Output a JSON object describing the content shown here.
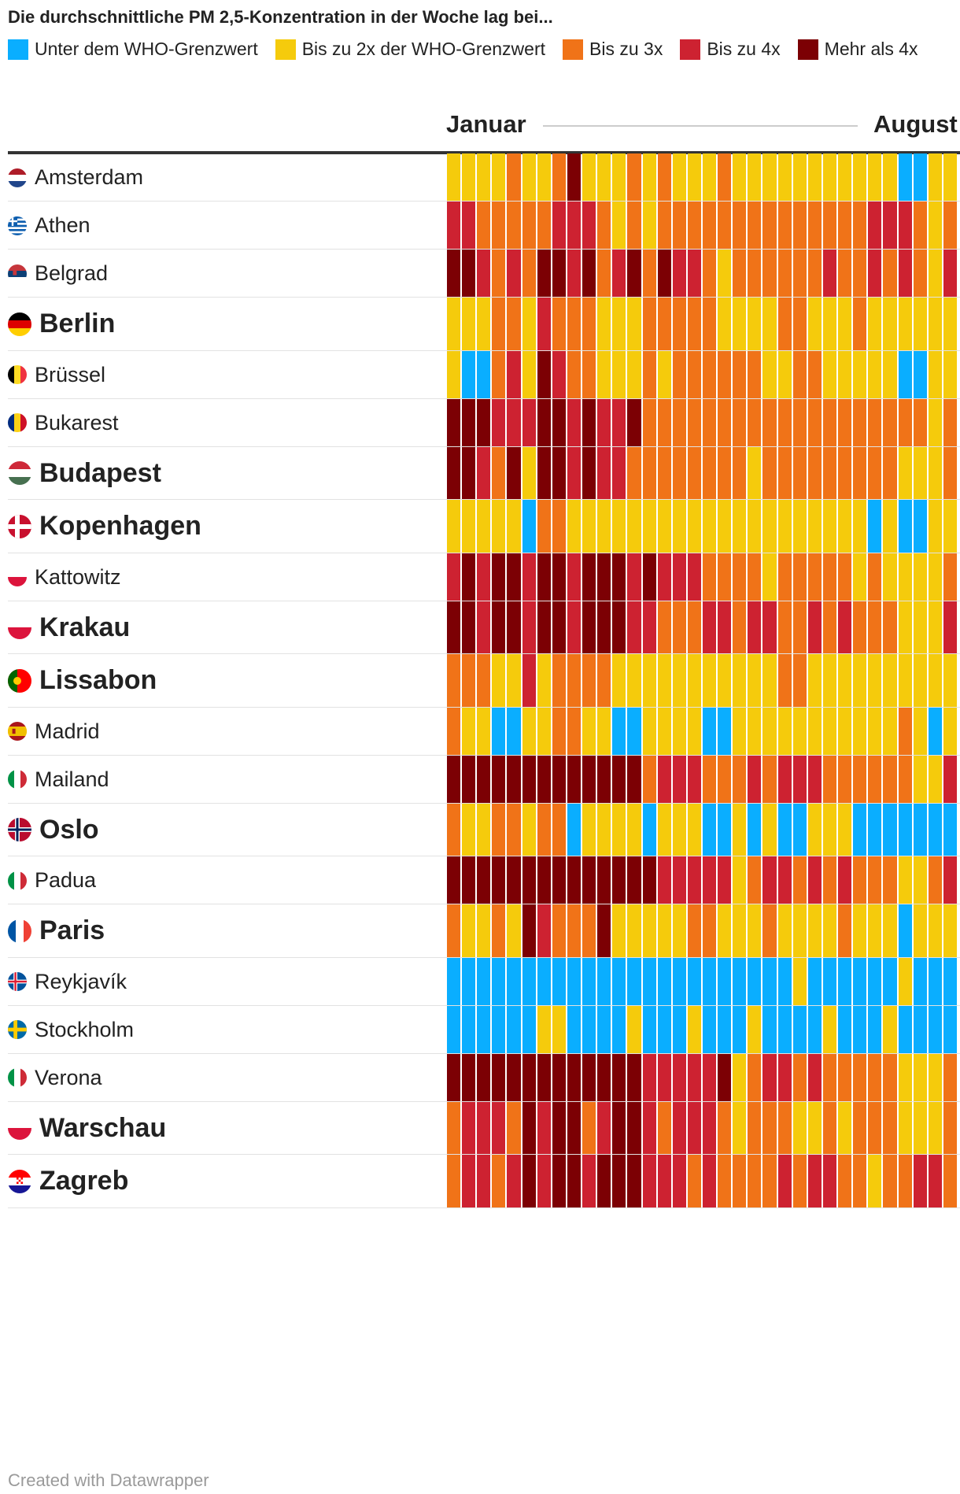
{
  "title": "Die durchschnittliche PM 2,5-Konzentration in der Woche lag bei...",
  "legend": [
    {
      "label": "Unter dem WHO-Grenzwert",
      "color": "#0aaeff"
    },
    {
      "label": "Bis zu 2x der WHO-Grenzwert",
      "color": "#f5cb0c"
    },
    {
      "label": "Bis zu 3x",
      "color": "#f07318"
    },
    {
      "label": "Bis zu 4x",
      "color": "#cd2231"
    },
    {
      "label": "Mehr als 4x",
      "color": "#7c0004"
    }
  ],
  "axis": {
    "start": "Januar",
    "end": "August"
  },
  "credit": "Created with Datawrapper",
  "chart_data": {
    "type": "heatmap",
    "title": "Die durchschnittliche PM 2,5-Konzentration in der Woche lag bei...",
    "x_range": [
      "Januar",
      "August"
    ],
    "columns": 34,
    "levels": {
      "0": "Unter dem WHO-Grenzwert",
      "1": "Bis zu 2x der WHO-Grenzwert",
      "2": "Bis zu 3x",
      "3": "Bis zu 4x",
      "4": "Mehr als 4x"
    },
    "rows": [
      {
        "city": "Amsterdam",
        "highlight": false,
        "flag": "nl",
        "values": [
          1,
          1,
          1,
          1,
          2,
          1,
          1,
          2,
          4,
          1,
          1,
          1,
          2,
          1,
          2,
          1,
          1,
          1,
          2,
          1,
          1,
          1,
          1,
          1,
          1,
          1,
          1,
          1,
          1,
          1,
          0,
          0,
          1,
          1
        ]
      },
      {
        "city": "Athen",
        "highlight": false,
        "flag": "gr",
        "values": [
          3,
          3,
          2,
          2,
          2,
          2,
          2,
          3,
          3,
          3,
          2,
          1,
          2,
          1,
          2,
          2,
          2,
          2,
          2,
          2,
          2,
          2,
          2,
          2,
          2,
          2,
          2,
          2,
          3,
          3,
          3,
          2,
          1,
          2
        ]
      },
      {
        "city": "Belgrad",
        "highlight": false,
        "flag": "rs",
        "values": [
          4,
          4,
          3,
          2,
          3,
          2,
          4,
          4,
          3,
          4,
          2,
          3,
          4,
          2,
          4,
          3,
          3,
          2,
          1,
          2,
          2,
          2,
          2,
          2,
          2,
          3,
          2,
          2,
          3,
          2,
          3,
          2,
          1,
          3
        ]
      },
      {
        "city": "Berlin",
        "highlight": true,
        "flag": "de",
        "values": [
          1,
          1,
          1,
          2,
          2,
          1,
          3,
          2,
          2,
          2,
          1,
          1,
          1,
          2,
          2,
          2,
          2,
          2,
          1,
          1,
          1,
          1,
          2,
          2,
          1,
          1,
          1,
          2,
          1,
          1,
          1,
          1,
          1,
          1
        ]
      },
      {
        "city": "Brüssel",
        "highlight": false,
        "flag": "be",
        "values": [
          1,
          0,
          0,
          2,
          3,
          1,
          4,
          3,
          2,
          2,
          1,
          1,
          1,
          2,
          1,
          2,
          2,
          2,
          2,
          2,
          2,
          1,
          1,
          2,
          2,
          1,
          1,
          1,
          1,
          1,
          0,
          0,
          1,
          1
        ]
      },
      {
        "city": "Bukarest",
        "highlight": false,
        "flag": "ro",
        "values": [
          4,
          4,
          4,
          3,
          3,
          3,
          4,
          4,
          3,
          4,
          3,
          3,
          4,
          2,
          2,
          2,
          2,
          2,
          2,
          2,
          2,
          2,
          2,
          2,
          2,
          2,
          2,
          2,
          2,
          2,
          2,
          2,
          1,
          2
        ]
      },
      {
        "city": "Budapest",
        "highlight": true,
        "flag": "hu",
        "values": [
          4,
          4,
          3,
          2,
          4,
          1,
          4,
          4,
          3,
          4,
          3,
          3,
          2,
          2,
          2,
          2,
          2,
          2,
          2,
          2,
          1,
          2,
          2,
          2,
          2,
          2,
          2,
          2,
          2,
          2,
          1,
          1,
          1,
          2
        ]
      },
      {
        "city": "Kopenhagen",
        "highlight": true,
        "flag": "dk",
        "values": [
          1,
          1,
          1,
          1,
          1,
          0,
          2,
          2,
          1,
          1,
          1,
          1,
          1,
          1,
          1,
          1,
          1,
          1,
          1,
          1,
          1,
          1,
          1,
          1,
          1,
          1,
          1,
          1,
          0,
          1,
          0,
          0,
          1,
          1
        ]
      },
      {
        "city": "Kattowitz",
        "highlight": false,
        "flag": "pl",
        "values": [
          3,
          4,
          3,
          4,
          4,
          3,
          4,
          4,
          3,
          4,
          4,
          4,
          3,
          4,
          3,
          3,
          3,
          2,
          2,
          2,
          2,
          1,
          2,
          2,
          2,
          2,
          2,
          1,
          2,
          1,
          1,
          1,
          1,
          2
        ]
      },
      {
        "city": "Krakau",
        "highlight": true,
        "flag": "pl",
        "values": [
          4,
          4,
          3,
          4,
          4,
          3,
          4,
          4,
          3,
          4,
          4,
          4,
          3,
          3,
          2,
          2,
          2,
          3,
          3,
          2,
          3,
          3,
          2,
          2,
          3,
          2,
          3,
          2,
          2,
          2,
          1,
          1,
          1,
          3
        ]
      },
      {
        "city": "Lissabon",
        "highlight": true,
        "flag": "pt",
        "values": [
          2,
          2,
          2,
          1,
          1,
          3,
          1,
          2,
          2,
          2,
          2,
          1,
          1,
          1,
          1,
          1,
          1,
          1,
          1,
          1,
          1,
          1,
          2,
          2,
          1,
          1,
          1,
          1,
          1,
          1,
          1,
          1,
          1,
          1
        ]
      },
      {
        "city": "Madrid",
        "highlight": false,
        "flag": "es",
        "values": [
          2,
          1,
          1,
          0,
          0,
          1,
          1,
          2,
          2,
          1,
          1,
          0,
          0,
          1,
          1,
          1,
          1,
          0,
          0,
          1,
          1,
          1,
          1,
          1,
          1,
          1,
          1,
          1,
          1,
          1,
          2,
          1,
          0,
          1
        ]
      },
      {
        "city": "Mailand",
        "highlight": false,
        "flag": "it",
        "values": [
          4,
          4,
          4,
          4,
          4,
          4,
          4,
          4,
          4,
          4,
          4,
          4,
          4,
          2,
          3,
          3,
          3,
          2,
          2,
          2,
          3,
          2,
          3,
          3,
          3,
          2,
          2,
          2,
          2,
          2,
          2,
          1,
          1,
          3
        ]
      },
      {
        "city": "Oslo",
        "highlight": true,
        "flag": "no",
        "values": [
          2,
          1,
          1,
          2,
          2,
          1,
          2,
          2,
          0,
          1,
          1,
          1,
          1,
          0,
          1,
          1,
          1,
          0,
          0,
          1,
          0,
          1,
          0,
          0,
          1,
          1,
          1,
          0,
          0,
          0,
          0,
          0,
          0,
          0
        ]
      },
      {
        "city": "Padua",
        "highlight": false,
        "flag": "it",
        "values": [
          4,
          4,
          4,
          4,
          4,
          4,
          4,
          4,
          4,
          4,
          4,
          4,
          4,
          4,
          3,
          3,
          3,
          3,
          3,
          1,
          2,
          3,
          3,
          2,
          3,
          2,
          3,
          2,
          2,
          2,
          1,
          1,
          2,
          3
        ]
      },
      {
        "city": "Paris",
        "highlight": true,
        "flag": "fr",
        "values": [
          2,
          1,
          1,
          2,
          1,
          4,
          3,
          2,
          2,
          2,
          4,
          1,
          1,
          1,
          1,
          1,
          2,
          2,
          1,
          1,
          1,
          2,
          1,
          1,
          1,
          1,
          2,
          1,
          1,
          1,
          0,
          1,
          1,
          1
        ]
      },
      {
        "city": "Reykjavík",
        "highlight": false,
        "flag": "is",
        "values": [
          0,
          0,
          0,
          0,
          0,
          0,
          0,
          0,
          0,
          0,
          0,
          0,
          0,
          0,
          0,
          0,
          0,
          0,
          0,
          0,
          0,
          0,
          0,
          1,
          0,
          0,
          0,
          0,
          0,
          0,
          1,
          0,
          0,
          0
        ]
      },
      {
        "city": "Stockholm",
        "highlight": false,
        "flag": "se",
        "values": [
          0,
          0,
          0,
          0,
          0,
          0,
          1,
          1,
          0,
          0,
          0,
          0,
          1,
          0,
          0,
          0,
          1,
          0,
          0,
          0,
          1,
          0,
          0,
          0,
          0,
          1,
          0,
          0,
          0,
          1,
          0,
          0,
          0,
          0
        ]
      },
      {
        "city": "Verona",
        "highlight": false,
        "flag": "it",
        "values": [
          4,
          4,
          4,
          4,
          4,
          4,
          4,
          4,
          4,
          4,
          4,
          4,
          4,
          3,
          3,
          3,
          3,
          3,
          4,
          1,
          2,
          3,
          3,
          2,
          3,
          2,
          2,
          2,
          2,
          2,
          1,
          1,
          1,
          2
        ]
      },
      {
        "city": "Warschau",
        "highlight": true,
        "flag": "pl",
        "values": [
          2,
          3,
          3,
          3,
          2,
          4,
          3,
          4,
          4,
          2,
          3,
          4,
          4,
          3,
          2,
          3,
          3,
          3,
          2,
          1,
          2,
          2,
          2,
          1,
          1,
          2,
          1,
          2,
          2,
          2,
          1,
          1,
          1,
          2
        ]
      },
      {
        "city": "Zagreb",
        "highlight": true,
        "flag": "hr",
        "values": [
          2,
          3,
          3,
          2,
          3,
          4,
          3,
          4,
          4,
          3,
          4,
          4,
          4,
          3,
          3,
          3,
          2,
          3,
          2,
          2,
          2,
          2,
          3,
          2,
          3,
          3,
          2,
          2,
          1,
          2,
          2,
          3,
          3,
          2
        ]
      }
    ]
  }
}
